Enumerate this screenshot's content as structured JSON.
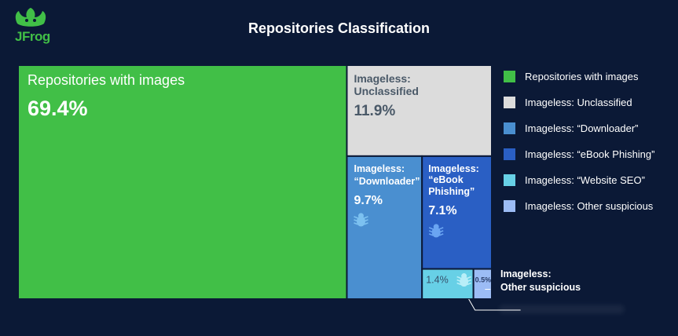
{
  "chart_data": {
    "type": "treemap",
    "title": "Repositories Classification",
    "series": [
      {
        "name": "Repositories with images",
        "value": 69.4,
        "value_label": "69.4%",
        "color": "#41bf47",
        "tile_label": "Repositories with images"
      },
      {
        "name": "Imageless: Unclassified",
        "value": 11.9,
        "value_label": "11.9%",
        "color": "#dcdcdc",
        "tile_label_line1": "Imageless:",
        "tile_label_line2": "Unclassified"
      },
      {
        "name": "Imageless: “Downloader”",
        "value": 9.7,
        "value_label": "9.7%",
        "color": "#4a8fd0",
        "tile_label_line1": "Imageless:",
        "tile_label_line2": "“Downloader”"
      },
      {
        "name": "Imageless: “eBook Phishing”",
        "value": 7.1,
        "value_label": "7.1%",
        "color": "#2a5fc4",
        "tile_label_line1": "Imageless:",
        "tile_label_line2": "“eBook",
        "tile_label_line3": "Phishing”"
      },
      {
        "name": "Imageless: “Website SEO”",
        "value": 1.4,
        "value_label": "1.4%",
        "color": "#67d0e6"
      },
      {
        "name": "Imageless: Other suspicious",
        "value": 0.5,
        "value_label": "0.5%",
        "color": "#9cbcf5"
      }
    ],
    "callout_line1": "Imageless:",
    "callout_line2": "Other suspicious"
  },
  "brand": {
    "logo_text": "JFrog",
    "icon": "frog-icon"
  },
  "icons": {
    "tile_icon": "bug-icon"
  }
}
